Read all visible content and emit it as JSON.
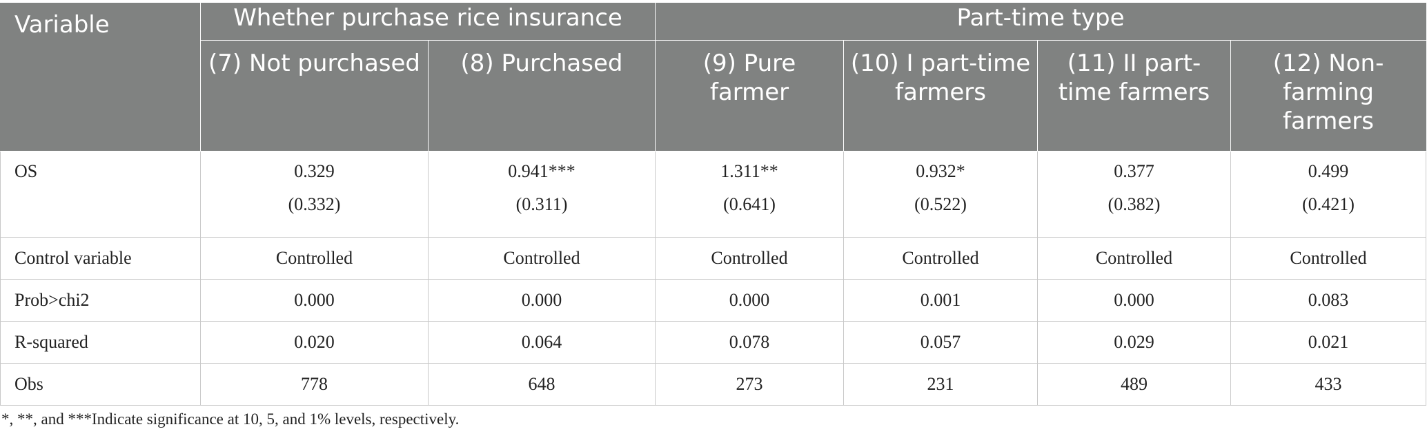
{
  "table": {
    "variable_header": "Variable",
    "group_headers": [
      "Whether purchase rice insurance",
      "Part-time type"
    ],
    "column_headers": [
      "(7) Not purchased",
      "(8) Purchased",
      "(9) Pure farmer",
      "(10) I part-time farmers",
      "(11) II part-time farmers",
      "(12) Non-farming farmers"
    ],
    "os_row": {
      "label": "OS",
      "coefficients": [
        "0.329",
        "0.941***",
        "1.311**",
        "0.932*",
        "0.377",
        "0.499"
      ],
      "standard_errors": [
        "(0.332)",
        "(0.311)",
        "(0.641)",
        "(0.522)",
        "(0.382)",
        "(0.421)"
      ]
    },
    "rows": [
      {
        "label": "Control variable",
        "values": [
          "Controlled",
          "Controlled",
          "Controlled",
          "Controlled",
          "Controlled",
          "Controlled"
        ]
      },
      {
        "label": "Prob>chi2",
        "values": [
          "0.000",
          "0.000",
          "0.000",
          "0.001",
          "0.000",
          "0.083"
        ]
      },
      {
        "label": "R-squared",
        "values": [
          "0.020",
          "0.064",
          "0.078",
          "0.057",
          "0.029",
          "0.021"
        ]
      },
      {
        "label": "Obs",
        "values": [
          "778",
          "648",
          "273",
          "231",
          "489",
          "433"
        ]
      }
    ]
  },
  "footnote": "*, **, and ***Indicate significance at 10, 5, and 1% levels, respectively."
}
